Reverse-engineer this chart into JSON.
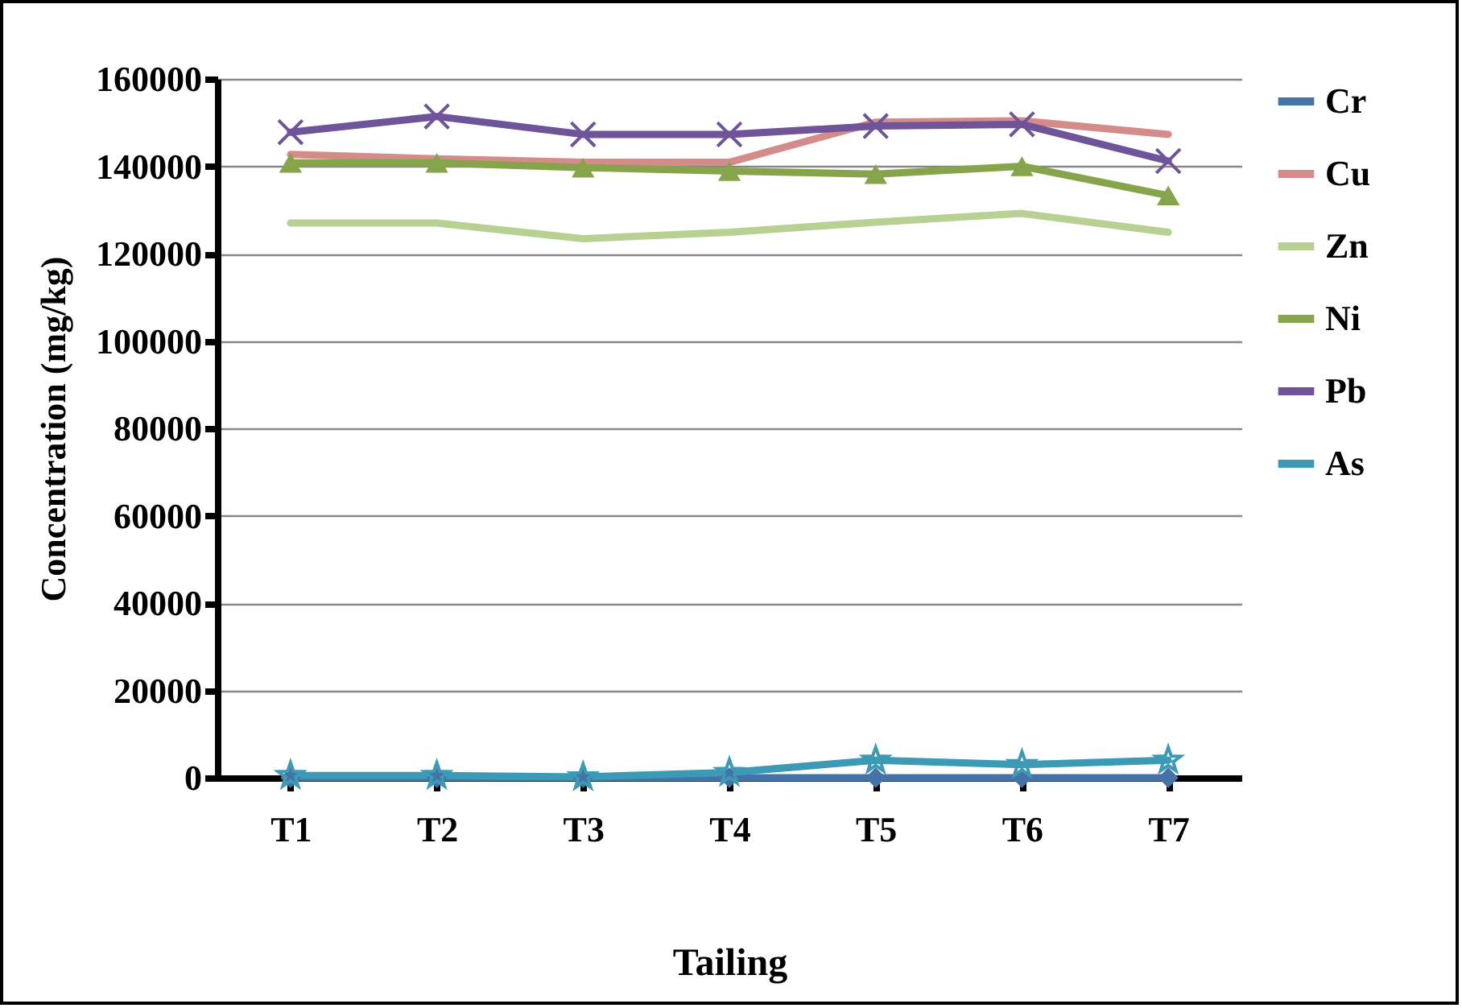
{
  "chart_data": {
    "type": "line",
    "xlabel": "Tailing",
    "ylabel": "Concentration (mg/kg)",
    "categories": [
      "T1",
      "T2",
      "T3",
      "T4",
      "T5",
      "T6",
      "T7"
    ],
    "ylim": [
      0,
      160000
    ],
    "yticks": [
      0,
      20000,
      40000,
      60000,
      80000,
      100000,
      120000,
      140000,
      160000
    ],
    "grid": "y",
    "legend": "right",
    "line_style": "solid",
    "series": [
      {
        "name": "Cr",
        "color": "#4572a7",
        "marker": "diamond",
        "values": [
          0,
          0,
          0,
          0,
          0,
          0,
          0
        ]
      },
      {
        "name": "Cu",
        "color": "#d48c8a",
        "marker": "none",
        "values": [
          142700,
          141700,
          140900,
          140900,
          150100,
          150400,
          147300
        ]
      },
      {
        "name": "Zn",
        "color": "#b7d193",
        "marker": "none",
        "values": [
          127000,
          127000,
          123400,
          124900,
          127200,
          129200,
          124900
        ]
      },
      {
        "name": "Ni",
        "color": "#86a44a",
        "marker": "triangle",
        "values": [
          140800,
          140800,
          139700,
          138900,
          138200,
          140000,
          133300
        ]
      },
      {
        "name": "Pb",
        "color": "#6f549a",
        "marker": "cross",
        "values": [
          147800,
          151400,
          147300,
          147300,
          149200,
          149600,
          141200
        ]
      },
      {
        "name": "As",
        "color": "#3d9ab4",
        "marker": "star",
        "values": [
          500,
          500,
          200,
          1200,
          4000,
          3000,
          4000
        ]
      }
    ]
  }
}
